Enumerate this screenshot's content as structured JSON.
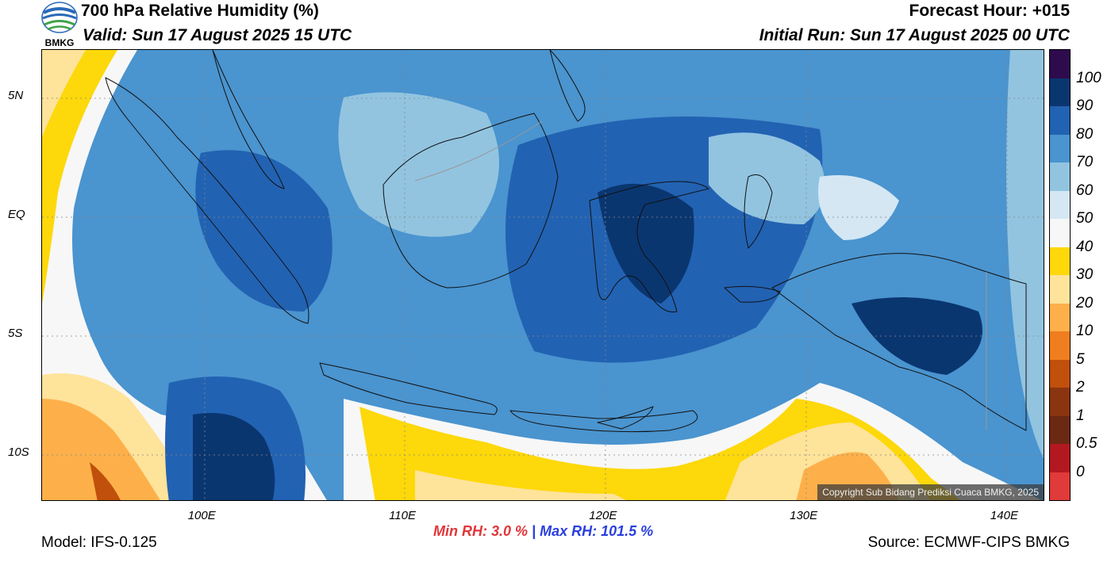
{
  "header": {
    "title": "700 hPa Relative Humidity (%)",
    "valid": "Valid: Sun 17 August 2025 15 UTC",
    "forecast_hour": "Forecast Hour: +015",
    "initial_run": "Initial Run: Sun 17 August 2025 00 UTC",
    "logo_text": "BMKG"
  },
  "map": {
    "copyright": "Copyright Sub Bidang Prediksi Cuaca BMKG, 2025",
    "lat_ticks": [
      {
        "label": "5N",
        "value": 5
      },
      {
        "label": "EQ",
        "value": 0
      },
      {
        "label": "5S",
        "value": -5
      },
      {
        "label": "10S",
        "value": -10
      }
    ],
    "lon_ticks": [
      {
        "label": "100E",
        "value": 100
      },
      {
        "label": "110E",
        "value": 110
      },
      {
        "label": "120E",
        "value": 120
      },
      {
        "label": "130E",
        "value": 130
      },
      {
        "label": "140E",
        "value": 140
      }
    ]
  },
  "colorbar": {
    "levels": [
      {
        "label": "",
        "color": "#e03a3a"
      },
      {
        "label": "0",
        "color": "#b31820"
      },
      {
        "label": "0.5",
        "color": "#6b2812"
      },
      {
        "label": "1",
        "color": "#8a3510"
      },
      {
        "label": "2",
        "color": "#c0500c"
      },
      {
        "label": "5",
        "color": "#f07e1e"
      },
      {
        "label": "10",
        "color": "#fdb04a"
      },
      {
        "label": "20",
        "color": "#fee39a"
      },
      {
        "label": "30",
        "color": "#fdd80a"
      },
      {
        "label": "40",
        "color": "#f7f7f7"
      },
      {
        "label": "50",
        "color": "#d4e7f3"
      },
      {
        "label": "60",
        "color": "#92c4e0"
      },
      {
        "label": "70",
        "color": "#4a94cf"
      },
      {
        "label": "80",
        "color": "#2262b2"
      },
      {
        "label": "90",
        "color": "#0a3670"
      },
      {
        "label": "100",
        "color": "#2e0b4d"
      }
    ]
  },
  "footer": {
    "min_rh": "Min RH:   3.0 %",
    "separator": "|",
    "max_rh": "Max RH: 101.5 %",
    "model": "Model: IFS-0.125",
    "source": "Source: ECMWF-CIPS BMKG"
  }
}
